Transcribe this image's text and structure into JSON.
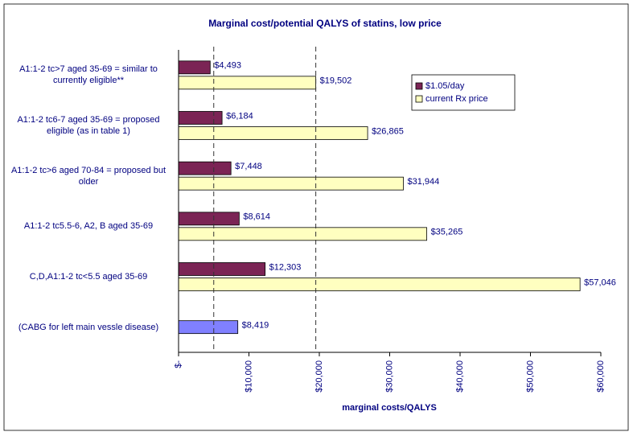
{
  "chart_data": {
    "type": "bar",
    "orientation": "horizontal",
    "title": "Marginal cost/potential QALYS of statins, low price",
    "x_label": "marginal costs/QALYS",
    "categories": [
      "A1:1-2 tc>7 aged 35-69 = similar to currently eligible**",
      "A1:1-2 tc6-7 aged 35-69 = proposed eligible (as in table 1)",
      "A1:1-2 tc>6 aged 70-84 = proposed but older",
      "A1:1-2 tc5.5-6, A2, B  aged 35-69",
      "C,D,A1:1-2 tc<5.5 aged 35-69",
      "(CABG for left main vessle disease)"
    ],
    "series": [
      {
        "name": "$1.05/day",
        "color": "#7b2455",
        "values": [
          4493,
          6184,
          7448,
          8614,
          12303,
          null
        ],
        "value_labels": [
          "$4,493",
          "$6,184",
          "$7,448",
          "$8,614",
          "$12,303",
          null
        ]
      },
      {
        "name": "current Rx price",
        "color": "#ffffc0",
        "values": [
          19502,
          26865,
          31944,
          35265,
          57046,
          null
        ],
        "value_labels": [
          "$19,502",
          "$26,865",
          "$31,944",
          "$35,265",
          "$57,046",
          null
        ]
      },
      {
        "color": "#8080ff",
        "values": [
          null,
          null,
          null,
          null,
          null,
          8419
        ],
        "value_labels": [
          null,
          null,
          null,
          null,
          null,
          "$8,419"
        ]
      }
    ],
    "xlim": [
      0,
      60000
    ],
    "xticks": [
      {
        "value": 0,
        "label": "$-"
      },
      {
        "value": 10000,
        "label": "$10,000"
      },
      {
        "value": 20000,
        "label": "$20,000"
      },
      {
        "value": 30000,
        "label": "$30,000"
      },
      {
        "value": 40000,
        "label": "$40,000"
      },
      {
        "value": 50000,
        "label": "$50,000"
      },
      {
        "value": 60000,
        "label": "$60,000"
      }
    ],
    "reference_lines": [
      5000,
      19500
    ],
    "legend": "top-right"
  }
}
